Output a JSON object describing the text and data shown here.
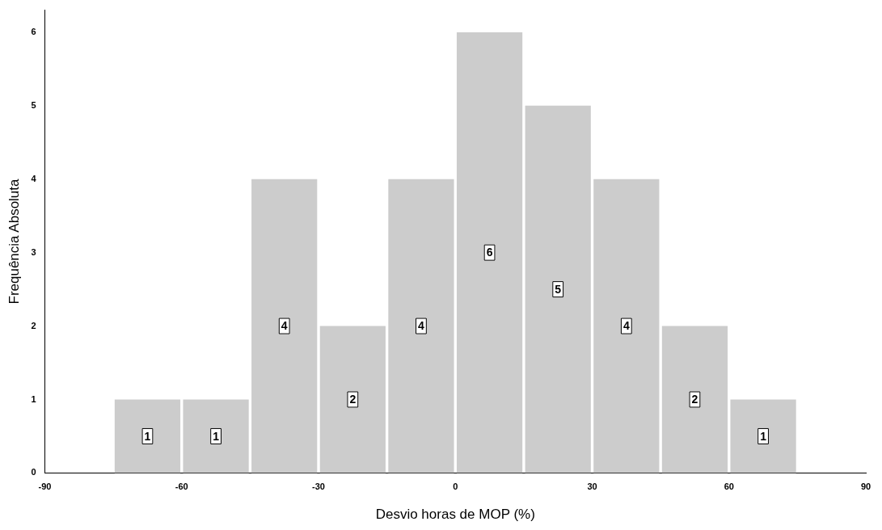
{
  "chart_data": {
    "type": "histogram",
    "xlabel": "Desvio horas de MOP (%)",
    "ylabel": "Frequência Absoluta",
    "bins": [
      -75,
      -60,
      -45,
      -30,
      -15,
      0,
      15,
      30,
      45,
      60,
      75
    ],
    "values": [
      1,
      1,
      4,
      2,
      4,
      6,
      5,
      4,
      2,
      1
    ],
    "color": "#cccccc",
    "xlim": [
      -90,
      90
    ],
    "xticks": [
      -90,
      -60,
      -30,
      0,
      30,
      60,
      90
    ],
    "ylim": [
      0,
      6.3
    ],
    "yticks": [
      0,
      1,
      2,
      3,
      4,
      5,
      6
    ],
    "data_labels": true,
    "grid": false,
    "legend": false
  }
}
